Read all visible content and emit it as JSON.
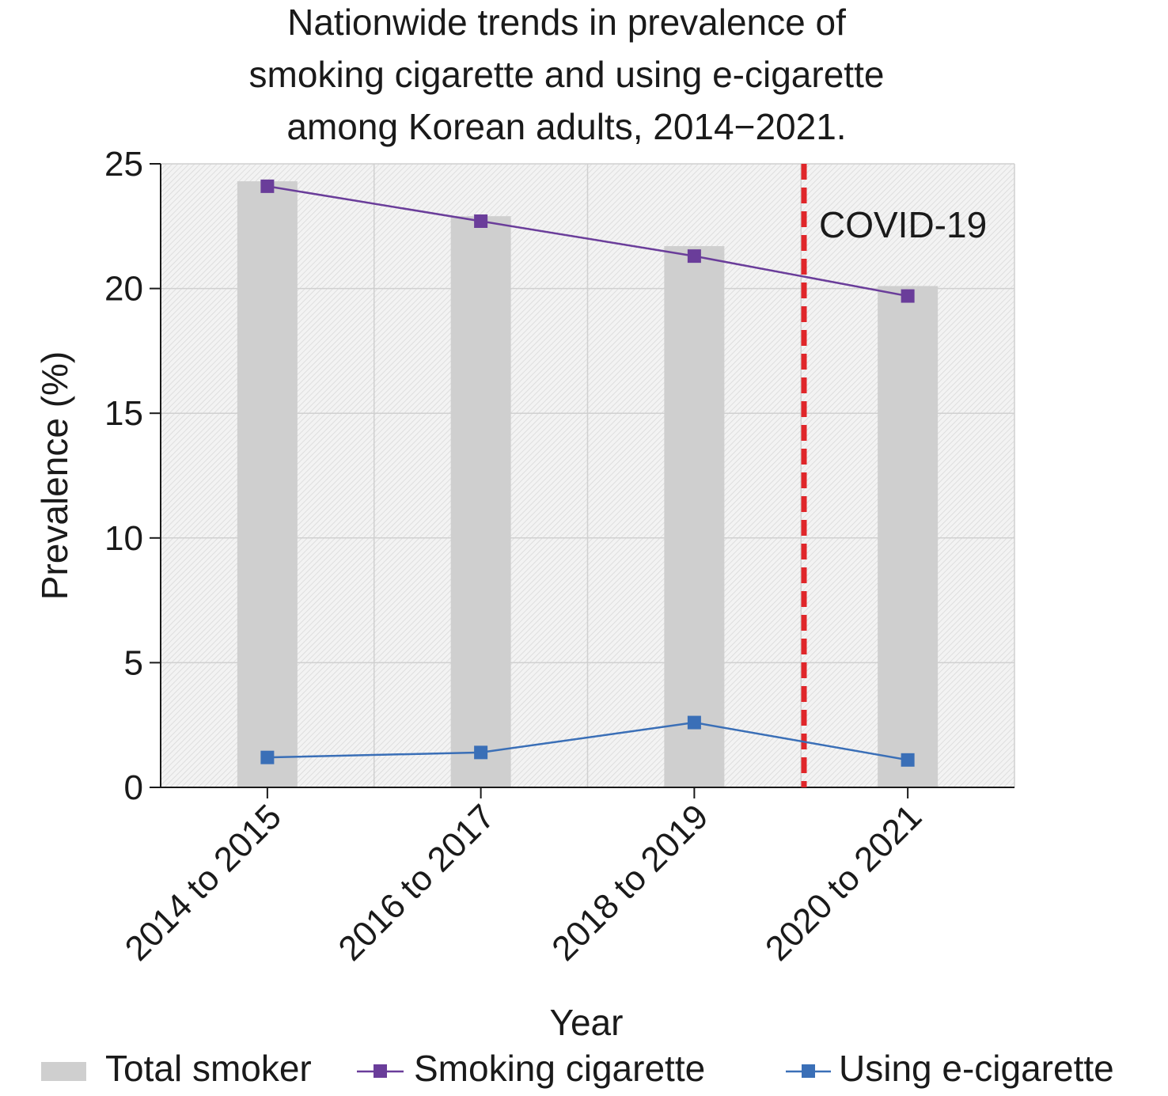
{
  "chart_data": {
    "type": "bar",
    "title_lines": [
      "Nationwide trends in prevalence of",
      "smoking cigarette and using e-cigarette",
      "among Korean adults, 2014−2021."
    ],
    "xlabel": "Year",
    "ylabel": "Prevalence (%)",
    "ylim": [
      0,
      25
    ],
    "yticks": [
      "0",
      "5",
      "10",
      "15",
      "20",
      "25"
    ],
    "categories": [
      "2014 to 2015",
      "2016 to 2017",
      "2018 to 2019",
      "2020 to 2021"
    ],
    "grid": true,
    "legend_position": "bottom",
    "series": [
      {
        "name": "Total smoker",
        "kind": "bar",
        "color": "#cfcfcf",
        "values": [
          24.3,
          22.9,
          21.7,
          20.1
        ]
      },
      {
        "name": "Smoking cigarette",
        "kind": "line",
        "marker": "square",
        "color": "#6a3d9a",
        "values": [
          24.1,
          22.7,
          21.3,
          19.7
        ]
      },
      {
        "name": "Using e-cigarette",
        "kind": "line",
        "marker": "square",
        "color": "#3a6fb7",
        "values": [
          1.2,
          1.4,
          2.6,
          1.1
        ]
      }
    ],
    "annotations": [
      {
        "text": "COVID-19",
        "kind": "vertical-dashed-line",
        "color": "#e0262a",
        "position": "between 2018 to 2019 and 2020 to 2021"
      }
    ]
  }
}
